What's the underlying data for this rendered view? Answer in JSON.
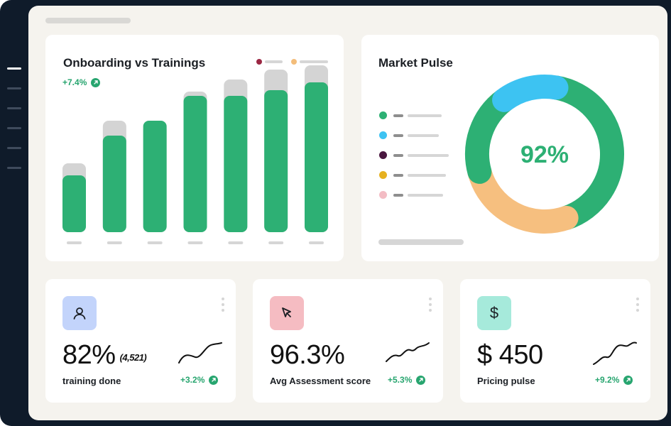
{
  "sidebar": {
    "items": [
      {
        "name": "sidebar-item-1",
        "active": true
      },
      {
        "name": "sidebar-item-2",
        "active": false
      },
      {
        "name": "sidebar-item-3",
        "active": false
      },
      {
        "name": "sidebar-item-4",
        "active": false
      },
      {
        "name": "sidebar-item-5",
        "active": false
      },
      {
        "name": "sidebar-item-6",
        "active": false
      }
    ]
  },
  "onboarding": {
    "title": "Onboarding vs Trainings",
    "trend": "+7.4%",
    "legend_colors": [
      "#9b2743",
      "#f3bd7a"
    ]
  },
  "chart_data": {
    "type": "bar",
    "categories": [
      "",
      "",
      "",
      "",
      "",
      "",
      ""
    ],
    "series": [
      {
        "values": [
          97,
          157,
          152,
          198,
          215,
          229,
          235
        ],
        "color": "#d4d4d4"
      },
      {
        "values": [
          80,
          136,
          157,
          192,
          192,
          200,
          211
        ],
        "color": "#2db074"
      }
    ],
    "ylim": [
      0,
      240
    ]
  },
  "market": {
    "title": "Market Pulse",
    "center_value": "92%",
    "legend_colors": [
      "#2db074",
      "#3dc3f2",
      "#4a173f",
      "#e6b120",
      "#f3bcc4"
    ],
    "donut_segments": [
      {
        "color": "#2db074",
        "value": 42
      },
      {
        "color": "#f6bf7f",
        "value": 26
      },
      {
        "color": "#2db074",
        "value": 19
      },
      {
        "color": "#3dc3f2",
        "value": 13
      }
    ]
  },
  "kpis": [
    {
      "icon": "user-icon",
      "icon_bg": "#c3d4fb",
      "value": "82%",
      "sub": "(4,521)",
      "label": "training done",
      "trend": "+3.2%"
    },
    {
      "icon": "cursor-icon",
      "icon_bg": "#f5bcc2",
      "value": "96.3%",
      "sub": "",
      "label": "Avg Assessment score",
      "trend": "+5.3%"
    },
    {
      "icon": "dollar-icon",
      "icon_bg": "#a6eadb",
      "value": "$ 450",
      "sub": "",
      "label": "Pricing pulse",
      "trend": "+9.2%"
    }
  ]
}
